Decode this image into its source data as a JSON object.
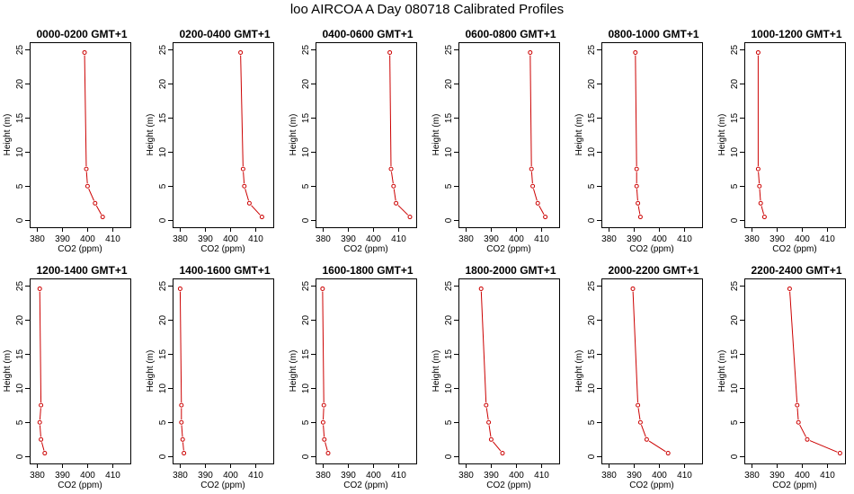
{
  "title": "loo AIRCOA A  Day 080718  Calibrated Profiles",
  "colors": {
    "series": "#cc0000",
    "axis": "#000000"
  },
  "chart_data": [
    {
      "type": "line",
      "title": "0000-0200 GMT+1",
      "xlabel": "CO2 (ppm)",
      "ylabel": "Height (m)",
      "xlim": [
        377,
        417
      ],
      "ylim": [
        -1,
        26
      ],
      "xticks": [
        380,
        390,
        400,
        410
      ],
      "yticks": [
        0,
        5,
        10,
        15,
        20,
        25
      ],
      "x": [
        406,
        403,
        400,
        399.5,
        398.8
      ],
      "y": [
        0.5,
        2.5,
        5,
        7.5,
        24.5
      ]
    },
    {
      "type": "line",
      "title": "0200-0400 GMT+1",
      "xlabel": "CO2 (ppm)",
      "ylabel": "Height (m)",
      "xlim": [
        377,
        417
      ],
      "ylim": [
        -1,
        26
      ],
      "xticks": [
        380,
        390,
        400,
        410
      ],
      "yticks": [
        0,
        5,
        10,
        15,
        20,
        25
      ],
      "x": [
        412.5,
        407.5,
        405.5,
        405,
        404
      ],
      "y": [
        0.5,
        2.5,
        5,
        7.5,
        24.5
      ]
    },
    {
      "type": "line",
      "title": "0400-0600 GMT+1",
      "xlabel": "CO2 (ppm)",
      "ylabel": "Height (m)",
      "xlim": [
        377,
        417
      ],
      "ylim": [
        -1,
        26
      ],
      "xticks": [
        380,
        390,
        400,
        410
      ],
      "yticks": [
        0,
        5,
        10,
        15,
        20,
        25
      ],
      "x": [
        414.5,
        409,
        408,
        407,
        406.5
      ],
      "y": [
        0.5,
        2.5,
        5,
        7.5,
        24.5
      ]
    },
    {
      "type": "line",
      "title": "0600-0800 GMT+1",
      "xlabel": "CO2 (ppm)",
      "ylabel": "Height (m)",
      "xlim": [
        377,
        417
      ],
      "ylim": [
        -1,
        26
      ],
      "xticks": [
        380,
        390,
        400,
        410
      ],
      "yticks": [
        0,
        5,
        10,
        15,
        20,
        25
      ],
      "x": [
        411.5,
        408.5,
        406.5,
        406,
        405.5
      ],
      "y": [
        0.5,
        2.5,
        5,
        7.5,
        24.5
      ]
    },
    {
      "type": "line",
      "title": "0800-1000 GMT+1",
      "xlabel": "CO2 (ppm)",
      "ylabel": "Height (m)",
      "xlim": [
        377,
        417
      ],
      "ylim": [
        -1,
        26
      ],
      "xticks": [
        380,
        390,
        400,
        410
      ],
      "yticks": [
        0,
        5,
        10,
        15,
        20,
        25
      ],
      "x": [
        392.5,
        391.5,
        391,
        391,
        390.5
      ],
      "y": [
        0.5,
        2.5,
        5,
        7.5,
        24.5
      ]
    },
    {
      "type": "line",
      "title": "1000-1200 GMT+1",
      "xlabel": "CO2 (ppm)",
      "ylabel": "Height (m)",
      "xlim": [
        377,
        417
      ],
      "ylim": [
        -1,
        26
      ],
      "xticks": [
        380,
        390,
        400,
        410
      ],
      "yticks": [
        0,
        5,
        10,
        15,
        20,
        25
      ],
      "x": [
        385,
        383.5,
        383,
        382.5,
        382.5
      ],
      "y": [
        0.5,
        2.5,
        5,
        7.5,
        24.5
      ]
    },
    {
      "type": "line",
      "title": "1200-1400 GMT+1",
      "xlabel": "CO2 (ppm)",
      "ylabel": "Height (m)",
      "xlim": [
        377,
        417
      ],
      "ylim": [
        -1,
        26
      ],
      "xticks": [
        380,
        390,
        400,
        410
      ],
      "yticks": [
        0,
        5,
        10,
        15,
        20,
        25
      ],
      "x": [
        383,
        381.5,
        381,
        381.5,
        381
      ],
      "y": [
        0.5,
        2.5,
        5,
        7.5,
        24.5
      ]
    },
    {
      "type": "line",
      "title": "1400-1600 GMT+1",
      "xlabel": "CO2 (ppm)",
      "ylabel": "Height (m)",
      "xlim": [
        377,
        417
      ],
      "ylim": [
        -1,
        26
      ],
      "xticks": [
        380,
        390,
        400,
        410
      ],
      "yticks": [
        0,
        5,
        10,
        15,
        20,
        25
      ],
      "x": [
        381.5,
        381,
        380.5,
        380.5,
        380
      ],
      "y": [
        0.5,
        2.5,
        5,
        7.5,
        24.5
      ]
    },
    {
      "type": "line",
      "title": "1600-1800 GMT+1",
      "xlabel": "CO2 (ppm)",
      "ylabel": "Height (m)",
      "xlim": [
        377,
        417
      ],
      "ylim": [
        -1,
        26
      ],
      "xticks": [
        380,
        390,
        400,
        410
      ],
      "yticks": [
        0,
        5,
        10,
        15,
        20,
        25
      ],
      "x": [
        382,
        380.5,
        380,
        380.3,
        379.8
      ],
      "y": [
        0.5,
        2.5,
        5,
        7.5,
        24.5
      ]
    },
    {
      "type": "line",
      "title": "1800-2000 GMT+1",
      "xlabel": "CO2 (ppm)",
      "ylabel": "Height (m)",
      "xlim": [
        377,
        417
      ],
      "ylim": [
        -1,
        26
      ],
      "xticks": [
        380,
        390,
        400,
        410
      ],
      "yticks": [
        0,
        5,
        10,
        15,
        20,
        25
      ],
      "x": [
        394.5,
        390,
        389,
        388,
        386
      ],
      "y": [
        0.5,
        2.5,
        5,
        7.5,
        24.5
      ]
    },
    {
      "type": "line",
      "title": "2000-2200 GMT+1",
      "xlabel": "CO2 (ppm)",
      "ylabel": "Height (m)",
      "xlim": [
        377,
        417
      ],
      "ylim": [
        -1,
        26
      ],
      "xticks": [
        380,
        390,
        400,
        410
      ],
      "yticks": [
        0,
        5,
        10,
        15,
        20,
        25
      ],
      "x": [
        403.5,
        395,
        392.5,
        391.5,
        389.5
      ],
      "y": [
        0.5,
        2.5,
        5,
        7.5,
        24.5
      ]
    },
    {
      "type": "line",
      "title": "2200-2400 GMT+1",
      "xlabel": "CO2 (ppm)",
      "ylabel": "Height (m)",
      "xlim": [
        377,
        417
      ],
      "ylim": [
        -1,
        26
      ],
      "xticks": [
        380,
        390,
        400,
        410
      ],
      "yticks": [
        0,
        5,
        10,
        15,
        20,
        25
      ],
      "x": [
        415,
        402,
        398.5,
        398,
        395
      ],
      "y": [
        0.5,
        2.5,
        5,
        7.5,
        24.5
      ]
    }
  ]
}
